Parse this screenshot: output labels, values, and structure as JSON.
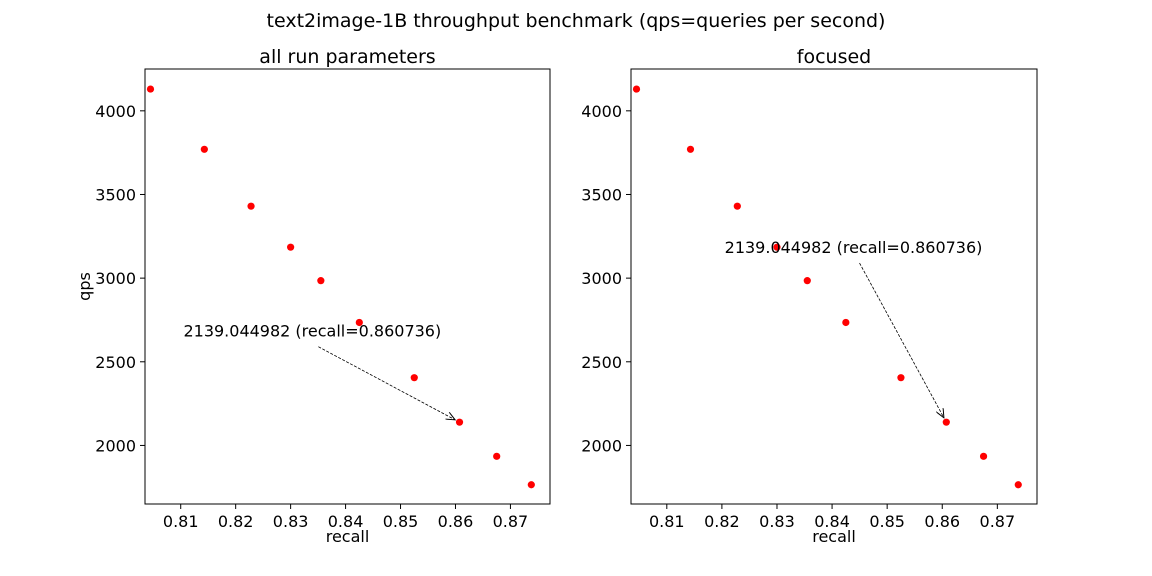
{
  "figure": {
    "suptitle": "text2image-1B throughput benchmark (qps=queries per second)"
  },
  "chart_data": [
    {
      "type": "scatter",
      "title": "all run parameters",
      "xlabel": "recall",
      "ylabel": "qps",
      "xlim": [
        0.8035,
        0.8772
      ],
      "ylim": [
        1650,
        4250
      ],
      "xticks": [
        "0.81",
        "0.82",
        "0.83",
        "0.84",
        "0.85",
        "0.86",
        "0.87"
      ],
      "yticks": [
        "2000",
        "2500",
        "3000",
        "3500",
        "4000"
      ],
      "marker_color": "#ff0000",
      "grid": false,
      "legend": "none",
      "points": [
        {
          "x": 0.8045,
          "y": 4130
        },
        {
          "x": 0.8143,
          "y": 3770
        },
        {
          "x": 0.8228,
          "y": 3430
        },
        {
          "x": 0.83,
          "y": 3185
        },
        {
          "x": 0.8355,
          "y": 2985
        },
        {
          "x": 0.8425,
          "y": 2735
        },
        {
          "x": 0.8525,
          "y": 2405
        },
        {
          "x": 0.860736,
          "y": 2139.044982
        },
        {
          "x": 0.8675,
          "y": 1935
        },
        {
          "x": 0.8738,
          "y": 1765
        }
      ],
      "annotation": {
        "text": "2139.044982 (recall=0.860736)",
        "point": {
          "x": 0.860736,
          "y": 2139.044982
        },
        "text_at": {
          "x": 0.8105,
          "y": 2650
        }
      }
    },
    {
      "type": "scatter",
      "title": "focused",
      "xlabel": "recall",
      "ylabel": "",
      "xlim": [
        0.8035,
        0.8772
      ],
      "ylim": [
        1650,
        4250
      ],
      "xticks": [
        "0.81",
        "0.82",
        "0.83",
        "0.84",
        "0.85",
        "0.86",
        "0.87"
      ],
      "yticks": [
        "2000",
        "2500",
        "3000",
        "3500",
        "4000"
      ],
      "marker_color": "#ff0000",
      "grid": false,
      "legend": "none",
      "points": [
        {
          "x": 0.8045,
          "y": 4130
        },
        {
          "x": 0.8143,
          "y": 3770
        },
        {
          "x": 0.8228,
          "y": 3430
        },
        {
          "x": 0.83,
          "y": 3185
        },
        {
          "x": 0.8355,
          "y": 2985
        },
        {
          "x": 0.8425,
          "y": 2735
        },
        {
          "x": 0.8525,
          "y": 2405
        },
        {
          "x": 0.860736,
          "y": 2139.044982
        },
        {
          "x": 0.8675,
          "y": 1935
        },
        {
          "x": 0.8738,
          "y": 1765
        }
      ],
      "annotation": {
        "text": "2139.044982 (recall=0.860736)",
        "point": {
          "x": 0.860736,
          "y": 2139.044982
        },
        "text_at": {
          "x": 0.8205,
          "y": 3150
        }
      }
    }
  ]
}
